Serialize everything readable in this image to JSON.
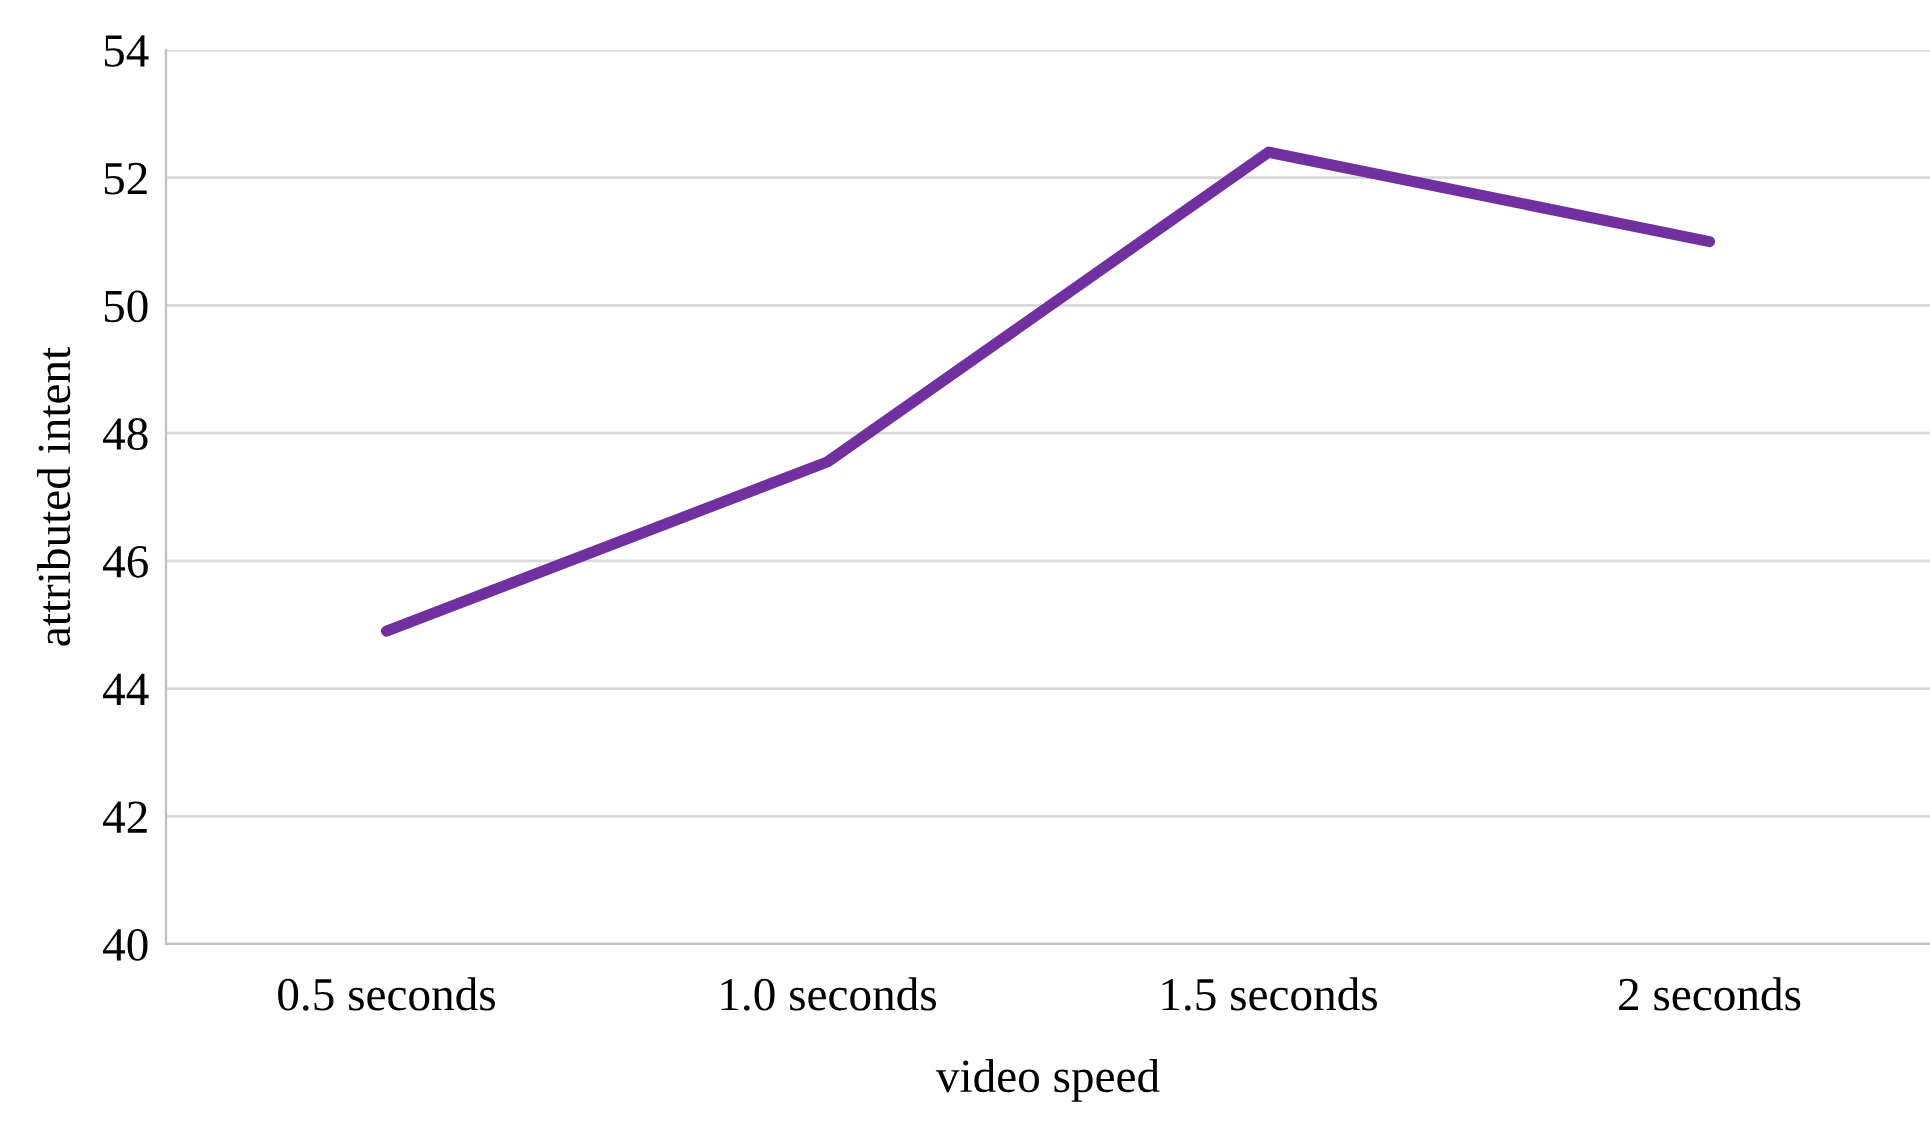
{
  "chart_data": {
    "type": "line",
    "xlabel": "video speed",
    "ylabel": "attributed intent",
    "categories": [
      "0.5 seconds",
      "1.0 seconds",
      "1.5 seconds",
      "2 seconds"
    ],
    "series": [
      {
        "color": "#7030a0",
        "values": [
          44.9,
          47.55,
          52.4,
          51.0
        ]
      }
    ],
    "ylim": [
      40,
      54
    ],
    "yticks": [
      40,
      42,
      44,
      46,
      48,
      50,
      52,
      54
    ],
    "grid": "y",
    "marker": "none",
    "line_style": "solid"
  }
}
